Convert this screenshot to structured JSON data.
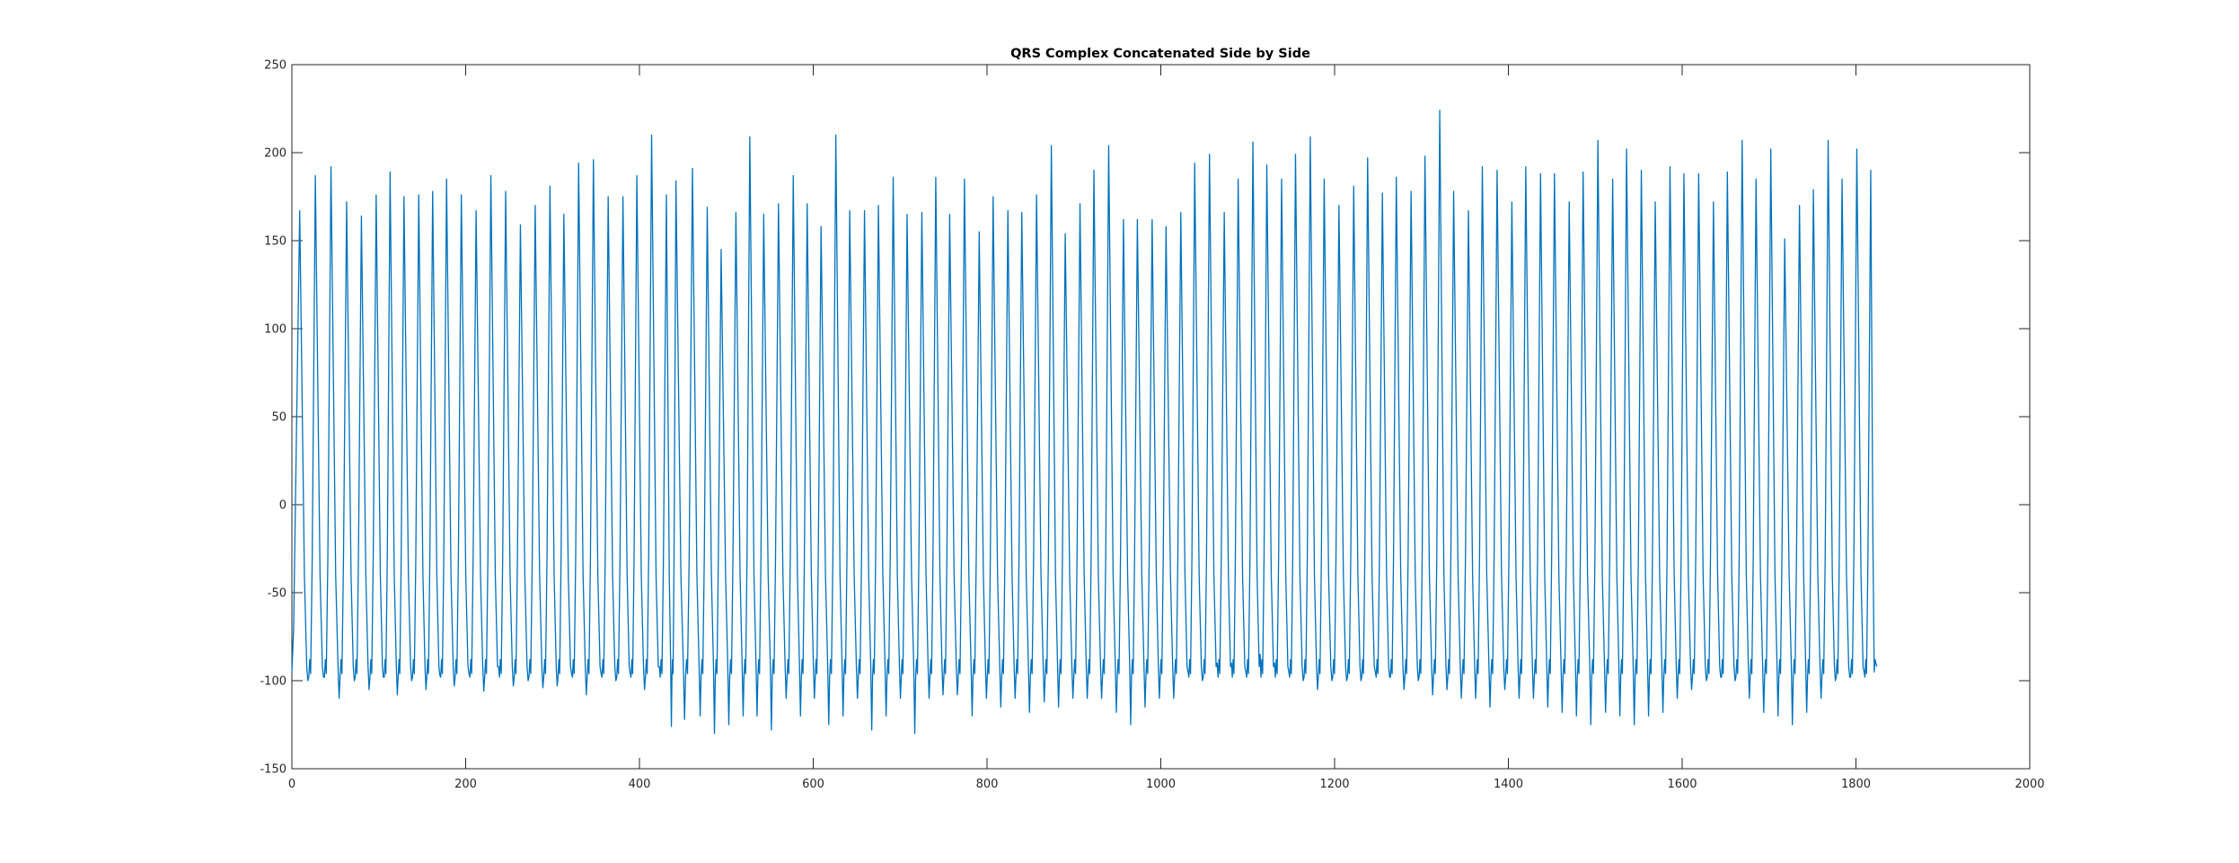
{
  "chart_data": {
    "type": "line",
    "title": "QRS Complex Concatenated Side by Side",
    "xlabel": "",
    "ylabel": "",
    "xlim": [
      0,
      2000
    ],
    "ylim": [
      -150,
      250
    ],
    "xticks": [
      0,
      200,
      400,
      600,
      800,
      1000,
      1200,
      1400,
      1600,
      1800,
      2000
    ],
    "yticks": [
      -150,
      -100,
      -50,
      0,
      50,
      100,
      150,
      200,
      250
    ],
    "grid": false,
    "legend": "none",
    "line_color": "#0072BD",
    "x_range": [
      0,
      1824
    ],
    "series": [
      {
        "description_points": "peak positions (x) and peak values (y) of each QRS complex, with trough values after each",
        "peaks_x": [
          9,
          27,
          45,
          63,
          80,
          97,
          113,
          129,
          146,
          162,
          178,
          195,
          212,
          229,
          246,
          263,
          280,
          297,
          313,
          330,
          347,
          364,
          381,
          397,
          414,
          431,
          442,
          461,
          478,
          494,
          511,
          527,
          543,
          560,
          577,
          593,
          609,
          626,
          642,
          659,
          675,
          692,
          708,
          725,
          741,
          757,
          774,
          791,
          807,
          824,
          840,
          857,
          874,
          890,
          907,
          923,
          940,
          957,
          973,
          990,
          1006,
          1023,
          1039,
          1056,
          1073,
          1089,
          1106,
          1122,
          1139,
          1155,
          1172,
          1188,
          1205,
          1222,
          1238,
          1255,
          1271,
          1288,
          1304,
          1321,
          1337,
          1354,
          1370,
          1387,
          1404,
          1420,
          1437,
          1453,
          1470,
          1486,
          1503,
          1520,
          1536,
          1553,
          1569,
          1586,
          1602,
          1619,
          1636,
          1652,
          1669,
          1685,
          1702,
          1718,
          1735,
          1751,
          1768,
          1784,
          1801,
          1817
        ],
        "peaks_y": [
          167,
          187,
          192,
          172,
          164,
          176,
          189,
          175,
          176,
          178,
          185,
          176,
          167,
          187,
          178,
          159,
          170,
          181,
          165,
          194,
          196,
          175,
          175,
          187,
          210,
          176,
          184,
          191,
          169,
          145,
          166,
          209,
          165,
          171,
          187,
          171,
          158,
          210,
          167,
          167,
          170,
          186,
          165,
          166,
          186,
          165,
          185,
          155,
          175,
          167,
          166,
          176,
          204,
          154,
          171,
          190,
          204,
          162,
          162,
          162,
          158,
          166,
          194,
          199,
          166,
          185,
          206,
          193,
          185,
          199,
          209,
          185,
          170,
          181,
          197,
          177,
          186,
          178,
          198,
          224,
          178,
          167,
          192,
          190,
          172,
          192,
          188,
          188,
          172,
          189,
          207,
          185,
          202,
          190,
          172,
          192,
          188,
          188,
          172,
          189,
          207,
          185,
          202,
          151,
          170,
          179,
          207,
          185,
          202,
          190
        ],
        "trough_y": [
          -100,
          -98,
          -110,
          -100,
          -105,
          -98,
          -108,
          -100,
          -105,
          -97,
          -103,
          -96,
          -106,
          -92,
          -103,
          -100,
          -104,
          -103,
          -96,
          -108,
          -96,
          -100,
          -96,
          -105,
          -92,
          -126,
          -122,
          -120,
          -130,
          -125,
          -120,
          -120,
          -128,
          -110,
          -120,
          -110,
          -125,
          -120,
          -110,
          -128,
          -120,
          -110,
          -130,
          -110,
          -108,
          -108,
          -120,
          -110,
          -115,
          -110,
          -118,
          -112,
          -115,
          -110,
          -110,
          -110,
          -118,
          -125,
          -115,
          -110,
          -110,
          -95,
          -100,
          -90,
          -90,
          -95,
          -85,
          -90,
          -95,
          -100,
          -105,
          -100,
          -100,
          -100,
          -95,
          -98,
          -105,
          -100,
          -108,
          -105,
          -110,
          -110,
          -115,
          -105,
          -110,
          -110,
          -115,
          -118,
          -120,
          -125,
          -118,
          -120,
          -125,
          -120,
          -118,
          -110,
          -105,
          -100,
          -98,
          -100,
          -110,
          -118,
          -120,
          -125,
          -118,
          -110,
          -100,
          -98,
          -95
        ]
      }
    ]
  }
}
